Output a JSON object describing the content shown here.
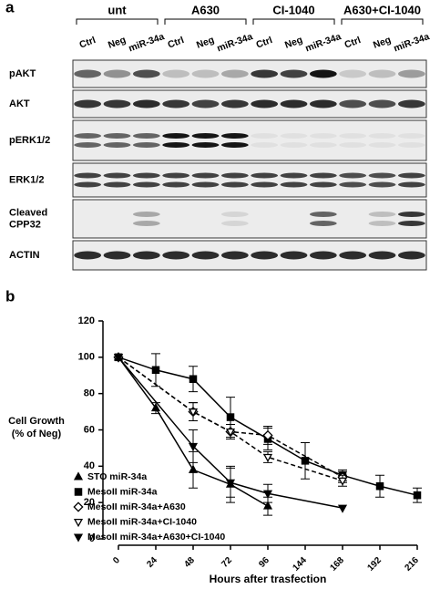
{
  "panel_a": {
    "label": "a",
    "groups": [
      "unt",
      "A630",
      "CI-1040",
      "A630+CI-1040"
    ],
    "lanes": [
      "Ctrl",
      "Neg",
      "miR-34a",
      "Ctrl",
      "Neg",
      "miR-34a",
      "Ctrl",
      "Neg",
      "miR-34a",
      "Ctrl",
      "Neg",
      "miR-34a"
    ],
    "rows": [
      [
        "pAKT"
      ],
      [
        "AKT"
      ],
      [
        "pERK1/2"
      ],
      [
        "ERK1/2"
      ],
      [
        "Cleaved",
        "CPP32"
      ],
      [
        "ACTIN"
      ]
    ]
  },
  "chart_data": {
    "type": "line",
    "label": "b",
    "ylabel": [
      "Cell Growth",
      "(% of Neg)"
    ],
    "xlabel": "Hours after trasfection",
    "xlim": [
      0,
      216
    ],
    "xticks": [
      0,
      24,
      48,
      72,
      96,
      144,
      168,
      192,
      216
    ],
    "ylim": [
      0,
      120
    ],
    "yticks": [
      0,
      20,
      40,
      60,
      80,
      100,
      120
    ],
    "series": [
      {
        "name": "STO miR-34a",
        "color": "#000000",
        "marker": "triangle-up",
        "filled": true,
        "dashed": false,
        "x": [
          0,
          24,
          48,
          72,
          96
        ],
        "values": [
          100,
          72,
          38,
          30,
          18
        ],
        "errors": [
          0,
          3,
          10,
          10,
          5
        ]
      },
      {
        "name": "MesoII miR-34a",
        "color": "#000000",
        "marker": "square",
        "filled": true,
        "dashed": false,
        "x": [
          0,
          24,
          48,
          72,
          96,
          144,
          168,
          192,
          216
        ],
        "values": [
          100,
          93,
          88,
          67,
          55,
          43,
          35,
          29,
          24
        ],
        "errors": [
          0,
          9,
          7,
          11,
          6,
          10,
          3,
          6,
          4
        ]
      },
      {
        "name": "MesoII miR-34a+A630",
        "color": "#000000",
        "marker": "diamond",
        "filled": false,
        "dashed": true,
        "x": [
          0,
          48,
          72,
          96,
          168
        ],
        "values": [
          100,
          70,
          59,
          57,
          34
        ],
        "errors": [
          0,
          5,
          4,
          5,
          3
        ]
      },
      {
        "name": "MesoII miR-34a+CI-1040",
        "color": "#000000",
        "marker": "triangle-down",
        "filled": false,
        "dashed": true,
        "x": [
          0,
          48,
          72,
          96,
          168
        ],
        "values": [
          100,
          70,
          59,
          45,
          32
        ],
        "errors": [
          0,
          5,
          4,
          3,
          3
        ]
      },
      {
        "name": "MesoII miR-34a+A630+CI-1040",
        "color": "#000000",
        "marker": "triangle-down",
        "filled": true,
        "dashed": false,
        "x": [
          0,
          48,
          72,
          96,
          168
        ],
        "values": [
          100,
          51,
          31,
          25,
          17
        ],
        "errors": [
          0,
          9,
          8,
          5,
          0
        ]
      }
    ]
  }
}
